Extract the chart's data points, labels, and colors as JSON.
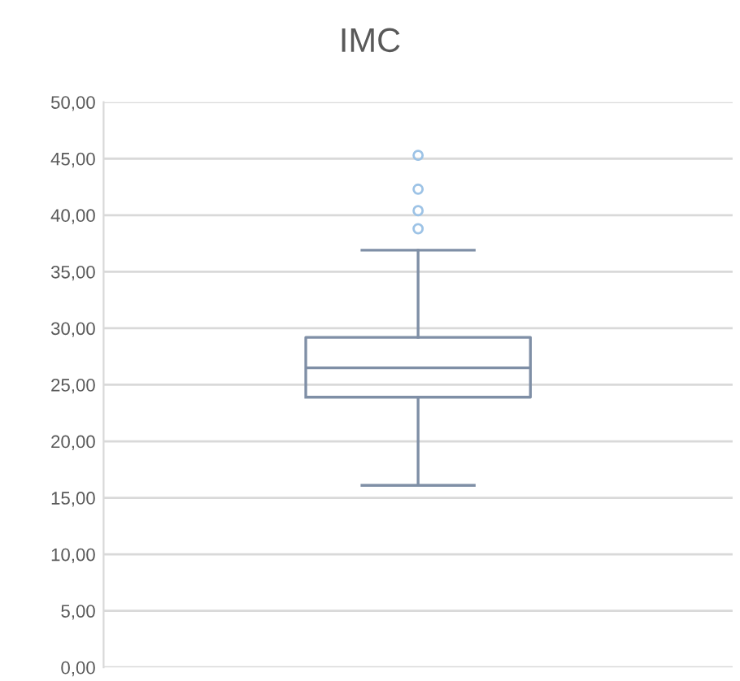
{
  "chart_data": {
    "type": "box",
    "title": "IMC",
    "categories": [
      null
    ],
    "boxes": [
      {
        "low": 16.1,
        "q1": 23.9,
        "median": 26.5,
        "q3": 29.2,
        "high": 36.9,
        "outliers": [
          38.8,
          40.4,
          42.3,
          45.3
        ]
      }
    ],
    "color": "#7f8fa6",
    "ylim": [
      0,
      50
    ],
    "yticks": [
      {
        "value": 0,
        "label": "0,00"
      },
      {
        "value": 5,
        "label": "5,00"
      },
      {
        "value": 10,
        "label": "10,00"
      },
      {
        "value": 15,
        "label": "15,00"
      },
      {
        "value": 20,
        "label": "20,00"
      },
      {
        "value": 25,
        "label": "25,00"
      },
      {
        "value": 30,
        "label": "30,00"
      },
      {
        "value": 35,
        "label": "35,00"
      },
      {
        "value": 40,
        "label": "40,00"
      },
      {
        "value": 45,
        "label": "45,00"
      },
      {
        "value": 50,
        "label": "50,00"
      }
    ],
    "grid": "y"
  }
}
